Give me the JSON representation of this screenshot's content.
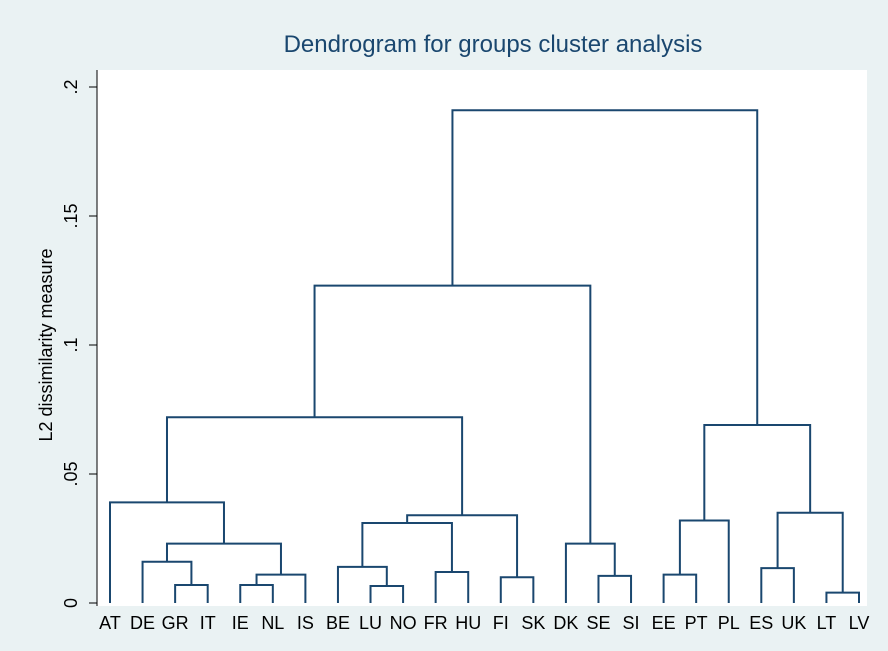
{
  "chart_data": {
    "type": "dendrogram",
    "title": "Dendrogram for groups cluster analysis",
    "y_label": "L2 dissimilarity measure",
    "color": "#1a476f",
    "leaves": [
      "AT",
      "DE",
      "GR",
      "IT",
      "IE",
      "NL",
      "IS",
      "BE",
      "LU",
      "NO",
      "FR",
      "HU",
      "FI",
      "SK",
      "DK",
      "SE",
      "SI",
      "EE",
      "PT",
      "PL",
      "ES",
      "UK",
      "LT",
      "LV"
    ],
    "merges": [
      {
        "children": [
          2,
          3
        ],
        "height": 0.007
      },
      {
        "children": [
          4,
          5
        ],
        "height": 0.007
      },
      {
        "children": [
          25,
          6
        ],
        "height": 0.011
      },
      {
        "children": [
          1,
          24
        ],
        "height": 0.016
      },
      {
        "children": [
          27,
          26
        ],
        "height": 0.023
      },
      {
        "children": [
          0,
          28
        ],
        "height": 0.039
      },
      {
        "children": [
          8,
          9
        ],
        "height": 0.0066
      },
      {
        "children": [
          7,
          30
        ],
        "height": 0.014
      },
      {
        "children": [
          10,
          11
        ],
        "height": 0.012
      },
      {
        "children": [
          31,
          32
        ],
        "height": 0.031
      },
      {
        "children": [
          12,
          13
        ],
        "height": 0.01
      },
      {
        "children": [
          33,
          34
        ],
        "height": 0.034
      },
      {
        "children": [
          29,
          35
        ],
        "height": 0.072
      },
      {
        "children": [
          15,
          16
        ],
        "height": 0.0105
      },
      {
        "children": [
          14,
          37
        ],
        "height": 0.023
      },
      {
        "children": [
          36,
          38
        ],
        "height": 0.123
      },
      {
        "children": [
          17,
          18
        ],
        "height": 0.011
      },
      {
        "children": [
          40,
          19
        ],
        "height": 0.032
      },
      {
        "children": [
          22,
          23
        ],
        "height": 0.004
      },
      {
        "children": [
          20,
          21
        ],
        "height": 0.0135
      },
      {
        "children": [
          43,
          42
        ],
        "height": 0.035
      },
      {
        "children": [
          41,
          44
        ],
        "height": 0.069
      },
      {
        "children": [
          39,
          45
        ],
        "height": 0.191
      }
    ],
    "ylim": [
      0,
      0.2
    ],
    "yticks": [
      0,
      {
        "value": 0.05,
        "label": ".05"
      },
      {
        "value": 0.1,
        "label": ".1"
      },
      {
        "value": 0.15,
        "label": ".15"
      },
      {
        "value": 0.2,
        "label": ".2"
      }
    ]
  }
}
